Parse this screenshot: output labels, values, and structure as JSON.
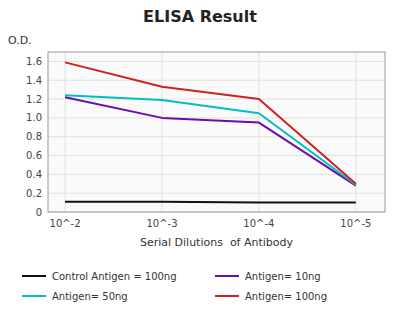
{
  "chart_data": {
    "type": "line",
    "title": "ELISA Result",
    "x_label": "Serial Dilutions  of Antibody",
    "y_label": "O.D.",
    "x": [
      0.01,
      0.001,
      0.0001,
      1e-05
    ],
    "xlim": [
      0.015,
      5e-06
    ],
    "xticks": [
      {
        "value": 0.01,
        "label": "10^-2"
      },
      {
        "value": 0.001,
        "label": "10^-3"
      },
      {
        "value": 0.0001,
        "label": "10^-4"
      },
      {
        "value": 1e-05,
        "label": "10^-5"
      }
    ],
    "log": "x",
    "ylim": [
      0,
      1.7
    ],
    "yticks": [
      0,
      0.2,
      0.4,
      0.6,
      0.8,
      {
        "value": 1.0,
        "label": "1.0"
      },
      1.2,
      1.4,
      1.6
    ],
    "grid": true,
    "legend": "bottom",
    "series": [
      {
        "name": "Control Antigen = 100ng",
        "color": "#111111",
        "values": [
          0.11,
          0.11,
          0.1,
          0.1
        ]
      },
      {
        "name": "Antigen= 10ng",
        "color": "#6A0DAD",
        "values": [
          1.22,
          1.0,
          0.95,
          0.28
        ]
      },
      {
        "name": "Antigen= 50ng",
        "color": "#00BFBF",
        "values": [
          1.24,
          1.19,
          1.05,
          0.29
        ]
      },
      {
        "name": "Antigen= 100ng",
        "color": "#CC2222",
        "values": [
          1.59,
          1.33,
          1.2,
          0.3
        ]
      }
    ]
  }
}
